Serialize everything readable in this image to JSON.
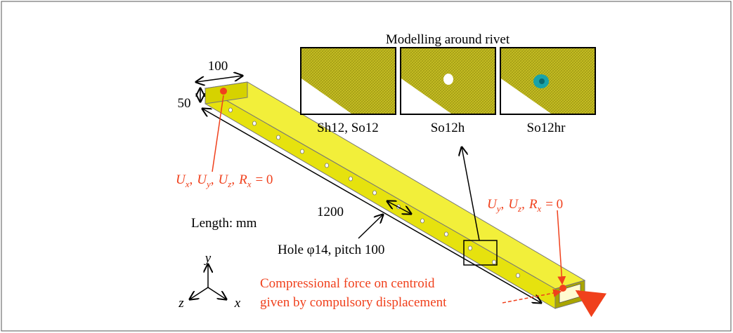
{
  "inset": {
    "title": "Modelling around rivet",
    "labels": [
      "Sh12, So12",
      "So12h",
      "So12hr"
    ]
  },
  "dimensions": {
    "width": "100",
    "height": "50",
    "length": "1200",
    "unit": "Length: mm"
  },
  "hole": "Hole φ14, pitch 100",
  "boundary_left": {
    "terms": [
      {
        "symbol": "U",
        "sub": "x"
      },
      {
        "symbol": "U",
        "sub": "y"
      },
      {
        "symbol": "U",
        "sub": "z"
      },
      {
        "symbol": "R",
        "sub": "x"
      }
    ],
    "separator": ",",
    "rhs": "= 0"
  },
  "boundary_right": {
    "terms": [
      {
        "symbol": "U",
        "sub": "y"
      },
      {
        "symbol": "U",
        "sub": "z"
      },
      {
        "symbol": "R",
        "sub": "x"
      }
    ],
    "separator": ",",
    "rhs": "= 0"
  },
  "axes": {
    "y": "y",
    "z": "z",
    "x": "x"
  },
  "load": {
    "line1": "Compressional force on centroid",
    "line2": "given by compulsory displacement"
  }
}
